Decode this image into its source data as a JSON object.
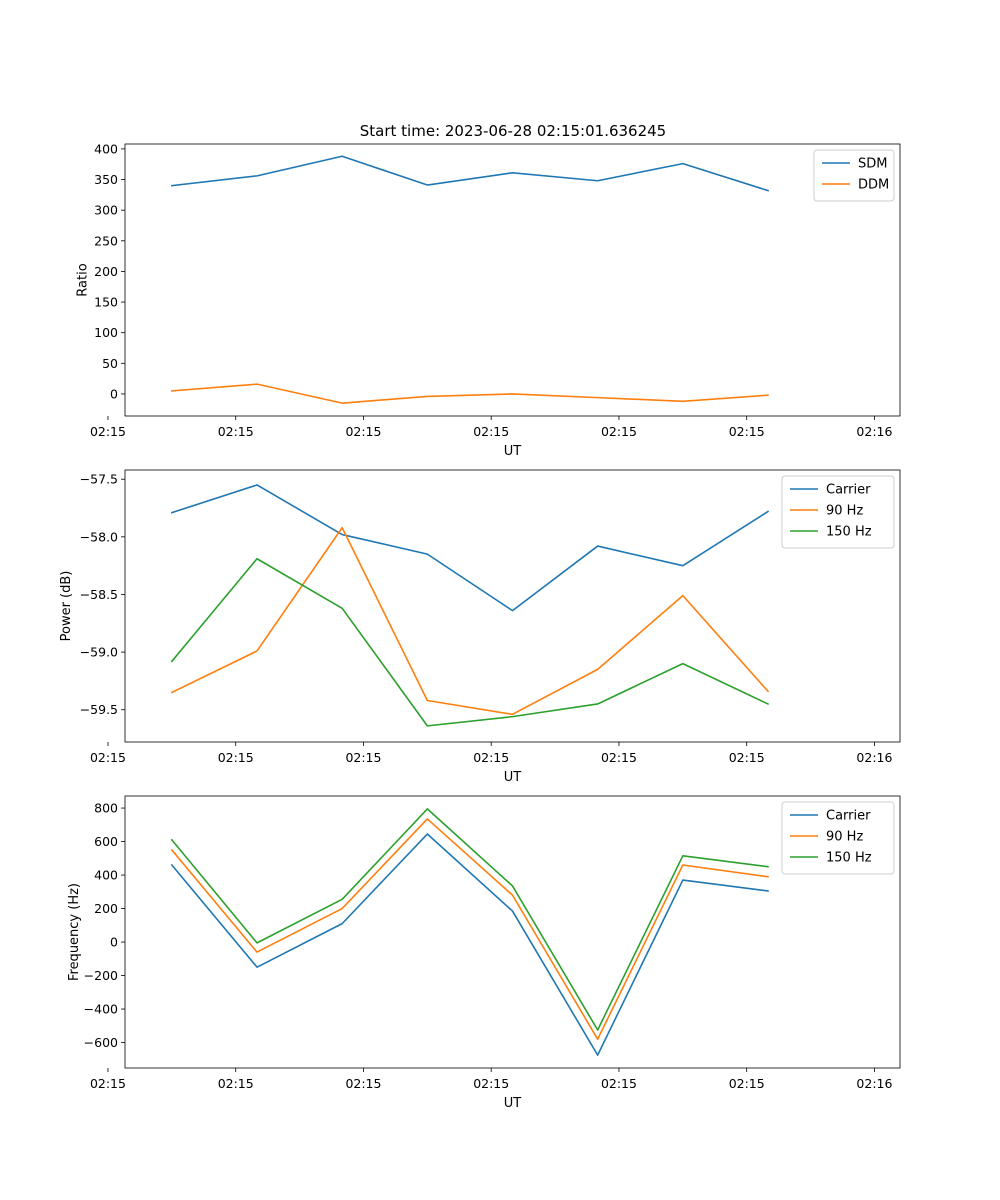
{
  "figure": {
    "title": "Start time: 2023-06-28 02:15:01.636245"
  },
  "chart_data": [
    {
      "type": "line",
      "ylabel": "Ratio",
      "xlabel": "UT",
      "xlim": [
        -0.55,
        8.55
      ],
      "ylim": [
        -36,
        408
      ],
      "x": [
        0,
        1,
        2,
        3,
        4,
        5,
        6,
        7
      ],
      "yticks": [
        0,
        50,
        100,
        150,
        200,
        250,
        300,
        350,
        400
      ],
      "ytick_labels": [
        "0",
        "50",
        "100",
        "150",
        "200",
        "250",
        "300",
        "350",
        "400"
      ],
      "xticks": [
        -0.75,
        0.75,
        2.25,
        3.75,
        5.25,
        6.75,
        8.25
      ],
      "xtick_labels": [
        "02:15",
        "02:15",
        "02:15",
        "02:15",
        "02:15",
        "02:15",
        "02:16"
      ],
      "legend": "top-right",
      "series": [
        {
          "name": "SDM",
          "color": "#1f77b4",
          "values": [
            340,
            356,
            388,
            341,
            361,
            348,
            376,
            332
          ]
        },
        {
          "name": "DDM",
          "color": "#ff7f0e",
          "values": [
            5,
            16,
            -15,
            -4,
            0,
            -6,
            -12,
            -2
          ]
        }
      ]
    },
    {
      "type": "line",
      "ylabel": "Power (dB)",
      "xlabel": "UT",
      "xlim": [
        -0.55,
        8.55
      ],
      "ylim": [
        -59.78,
        -57.42
      ],
      "x": [
        0,
        1,
        2,
        3,
        4,
        5,
        6,
        7
      ],
      "yticks": [
        -59.5,
        -59.0,
        -58.5,
        -58.0,
        -57.5
      ],
      "ytick_labels": [
        "−59.5",
        "−59.0",
        "−58.5",
        "−58.0",
        "−57.5"
      ],
      "xticks": [
        -0.75,
        0.75,
        2.25,
        3.75,
        5.25,
        6.75,
        8.25
      ],
      "xtick_labels": [
        "02:15",
        "02:15",
        "02:15",
        "02:15",
        "02:15",
        "02:15",
        "02:16"
      ],
      "legend": "top-right",
      "series": [
        {
          "name": "Carrier",
          "color": "#1f77b4",
          "values": [
            -57.79,
            -57.55,
            -57.98,
            -58.15,
            -58.64,
            -58.08,
            -58.25,
            -57.78
          ]
        },
        {
          "name": "90 Hz",
          "color": "#ff7f0e",
          "values": [
            -59.35,
            -58.99,
            -57.92,
            -59.42,
            -59.54,
            -59.15,
            -58.51,
            -59.34
          ]
        },
        {
          "name": "150 Hz",
          "color": "#2ca02c",
          "values": [
            -59.08,
            -58.19,
            -58.62,
            -59.64,
            -59.56,
            -59.45,
            -59.1,
            -59.45
          ]
        }
      ]
    },
    {
      "type": "line",
      "ylabel": "Frequency (Hz)",
      "xlabel": "UT",
      "xlim": [
        -0.55,
        8.55
      ],
      "ylim": [
        -752,
        872
      ],
      "x": [
        0,
        1,
        2,
        3,
        4,
        5,
        6,
        7
      ],
      "yticks": [
        -600,
        -400,
        -200,
        0,
        200,
        400,
        600,
        800
      ],
      "ytick_labels": [
        "−600",
        "−400",
        "−200",
        "0",
        "200",
        "400",
        "600",
        "800"
      ],
      "xticks": [
        -0.75,
        0.75,
        2.25,
        3.75,
        5.25,
        6.75,
        8.25
      ],
      "xtick_labels": [
        "02:15",
        "02:15",
        "02:15",
        "02:15",
        "02:15",
        "02:15",
        "02:16"
      ],
      "legend": "top-right",
      "series": [
        {
          "name": "Carrier",
          "color": "#1f77b4",
          "values": [
            460,
            -150,
            110,
            645,
            185,
            -675,
            370,
            305
          ]
        },
        {
          "name": "90 Hz",
          "color": "#ff7f0e",
          "values": [
            550,
            -60,
            200,
            735,
            280,
            -580,
            460,
            390
          ]
        },
        {
          "name": "150 Hz",
          "color": "#2ca02c",
          "values": [
            610,
            -5,
            255,
            795,
            335,
            -525,
            515,
            450
          ]
        }
      ]
    }
  ]
}
